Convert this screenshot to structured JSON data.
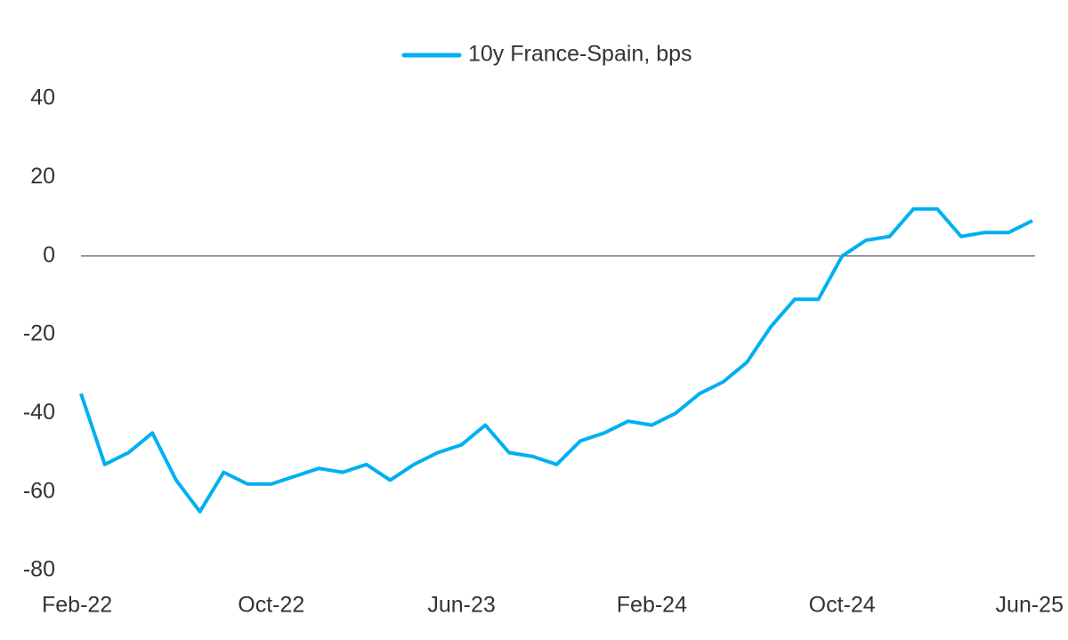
{
  "chart_data": {
    "type": "line",
    "categories": [
      "Feb-22",
      null,
      null,
      null,
      null,
      null,
      null,
      null,
      "Oct-22",
      null,
      null,
      null,
      null,
      null,
      null,
      null,
      "Jun-23",
      null,
      null,
      null,
      null,
      null,
      null,
      null,
      "Feb-24",
      null,
      null,
      null,
      null,
      null,
      null,
      null,
      "Oct-24",
      null,
      null,
      null,
      null,
      null,
      null,
      null,
      "Jun-25"
    ],
    "series": [
      {
        "name": "10y France-Spain, bps",
        "color": "#00b0f0",
        "values": [
          -35,
          -53,
          -50,
          -45,
          -57,
          -65,
          -55,
          -58,
          -58,
          -56,
          -54,
          -55,
          -53,
          -57,
          -53,
          -50,
          -48,
          -43,
          -50,
          -51,
          -53,
          -47,
          -45,
          -42,
          -43,
          -40,
          -35,
          -32,
          -27,
          -18,
          -11,
          -11,
          0,
          4,
          5,
          12,
          12,
          5,
          6,
          6,
          9
        ]
      }
    ],
    "ylim": [
      -80,
      40
    ],
    "yticks": [
      -80,
      -60,
      -40,
      -20,
      0,
      20,
      40
    ],
    "legend": "top"
  }
}
